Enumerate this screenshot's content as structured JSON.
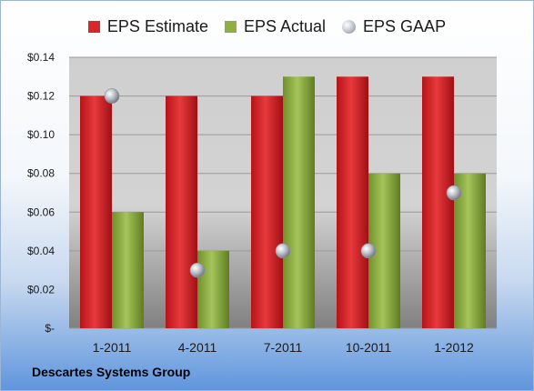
{
  "chart_data": {
    "type": "bar",
    "categories": [
      "1-2011",
      "4-2011",
      "7-2011",
      "10-2011",
      "1-2012"
    ],
    "series": [
      {
        "name": "EPS Estimate",
        "values": [
          0.12,
          0.12,
          0.12,
          0.13,
          0.13
        ],
        "color": "#d9262b"
      },
      {
        "name": "EPS Actual",
        "values": [
          0.06,
          0.04,
          0.13,
          0.08,
          0.08
        ],
        "color": "#8fb040"
      },
      {
        "name": "EPS GAAP",
        "values": [
          0.12,
          0.03,
          0.04,
          0.04,
          0.07
        ],
        "marker": "sphere"
      }
    ],
    "y_ticks": [
      "$-",
      "$0.02",
      "$0.04",
      "$0.06",
      "$0.08",
      "$0.10",
      "$0.12",
      "$0.14"
    ],
    "ylim": [
      0,
      0.14
    ],
    "grid": true,
    "legend_placement": "top"
  },
  "footer": {
    "company": "Descartes Systems Group"
  }
}
